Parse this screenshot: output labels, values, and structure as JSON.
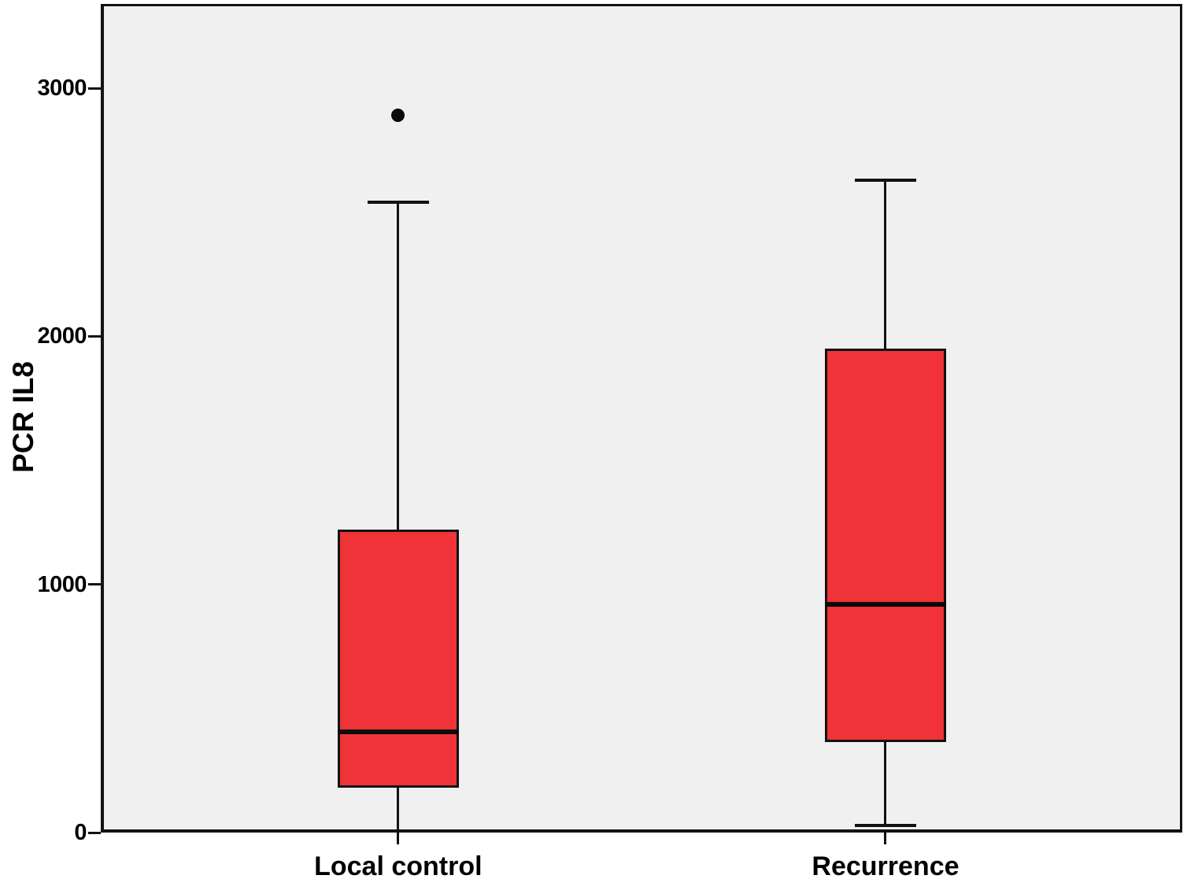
{
  "chart_data": {
    "type": "box",
    "title": "",
    "xlabel": "",
    "ylabel": "PCR IL8",
    "categories": [
      "Local control",
      "Recurrence"
    ],
    "yticks": [
      0,
      1000,
      2000,
      3000
    ],
    "ylim": [
      0,
      3340
    ],
    "grid": false,
    "legend": false,
    "series": [
      {
        "name": "Local control",
        "min": 5,
        "q1": 180,
        "median": 405,
        "q3": 1220,
        "max": 2540,
        "outliers": [
          2890
        ]
      },
      {
        "name": "Recurrence",
        "min": 30,
        "q1": 365,
        "median": 920,
        "q3": 1950,
        "max": 2630,
        "outliers": []
      }
    ],
    "colors": {
      "box_fill": "#ef3338",
      "line": "#121212",
      "plot_bg": "#f0f0f0",
      "outlier": "#0a0a0a",
      "text": "#000000"
    }
  }
}
